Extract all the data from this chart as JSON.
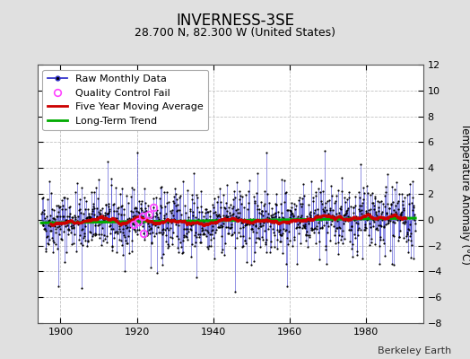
{
  "title": "INVERNESS-3SE",
  "subtitle": "28.700 N, 82.300 W (United States)",
  "ylabel": "Temperature Anomaly (°C)",
  "attribution": "Berkeley Earth",
  "year_start": 1895,
  "year_end": 1993,
  "ylim": [
    -8,
    12
  ],
  "yticks": [
    -8,
    -6,
    -4,
    -2,
    0,
    2,
    4,
    6,
    8,
    10,
    12
  ],
  "xticks": [
    1900,
    1920,
    1940,
    1960,
    1980
  ],
  "raw_line_color": "#3333cc",
  "raw_marker_color": "#000000",
  "moving_avg_color": "#cc0000",
  "trend_color": "#00aa00",
  "qc_fail_color": "#ff44ff",
  "background_color": "#e0e0e0",
  "plot_bg_color": "#ffffff",
  "grid_color": "#bbbbbb",
  "seed": 42,
  "num_months": 1176,
  "moving_avg_window": 60,
  "legend_fontsize": 8,
  "title_fontsize": 12,
  "subtitle_fontsize": 9,
  "attr_fontsize": 8
}
